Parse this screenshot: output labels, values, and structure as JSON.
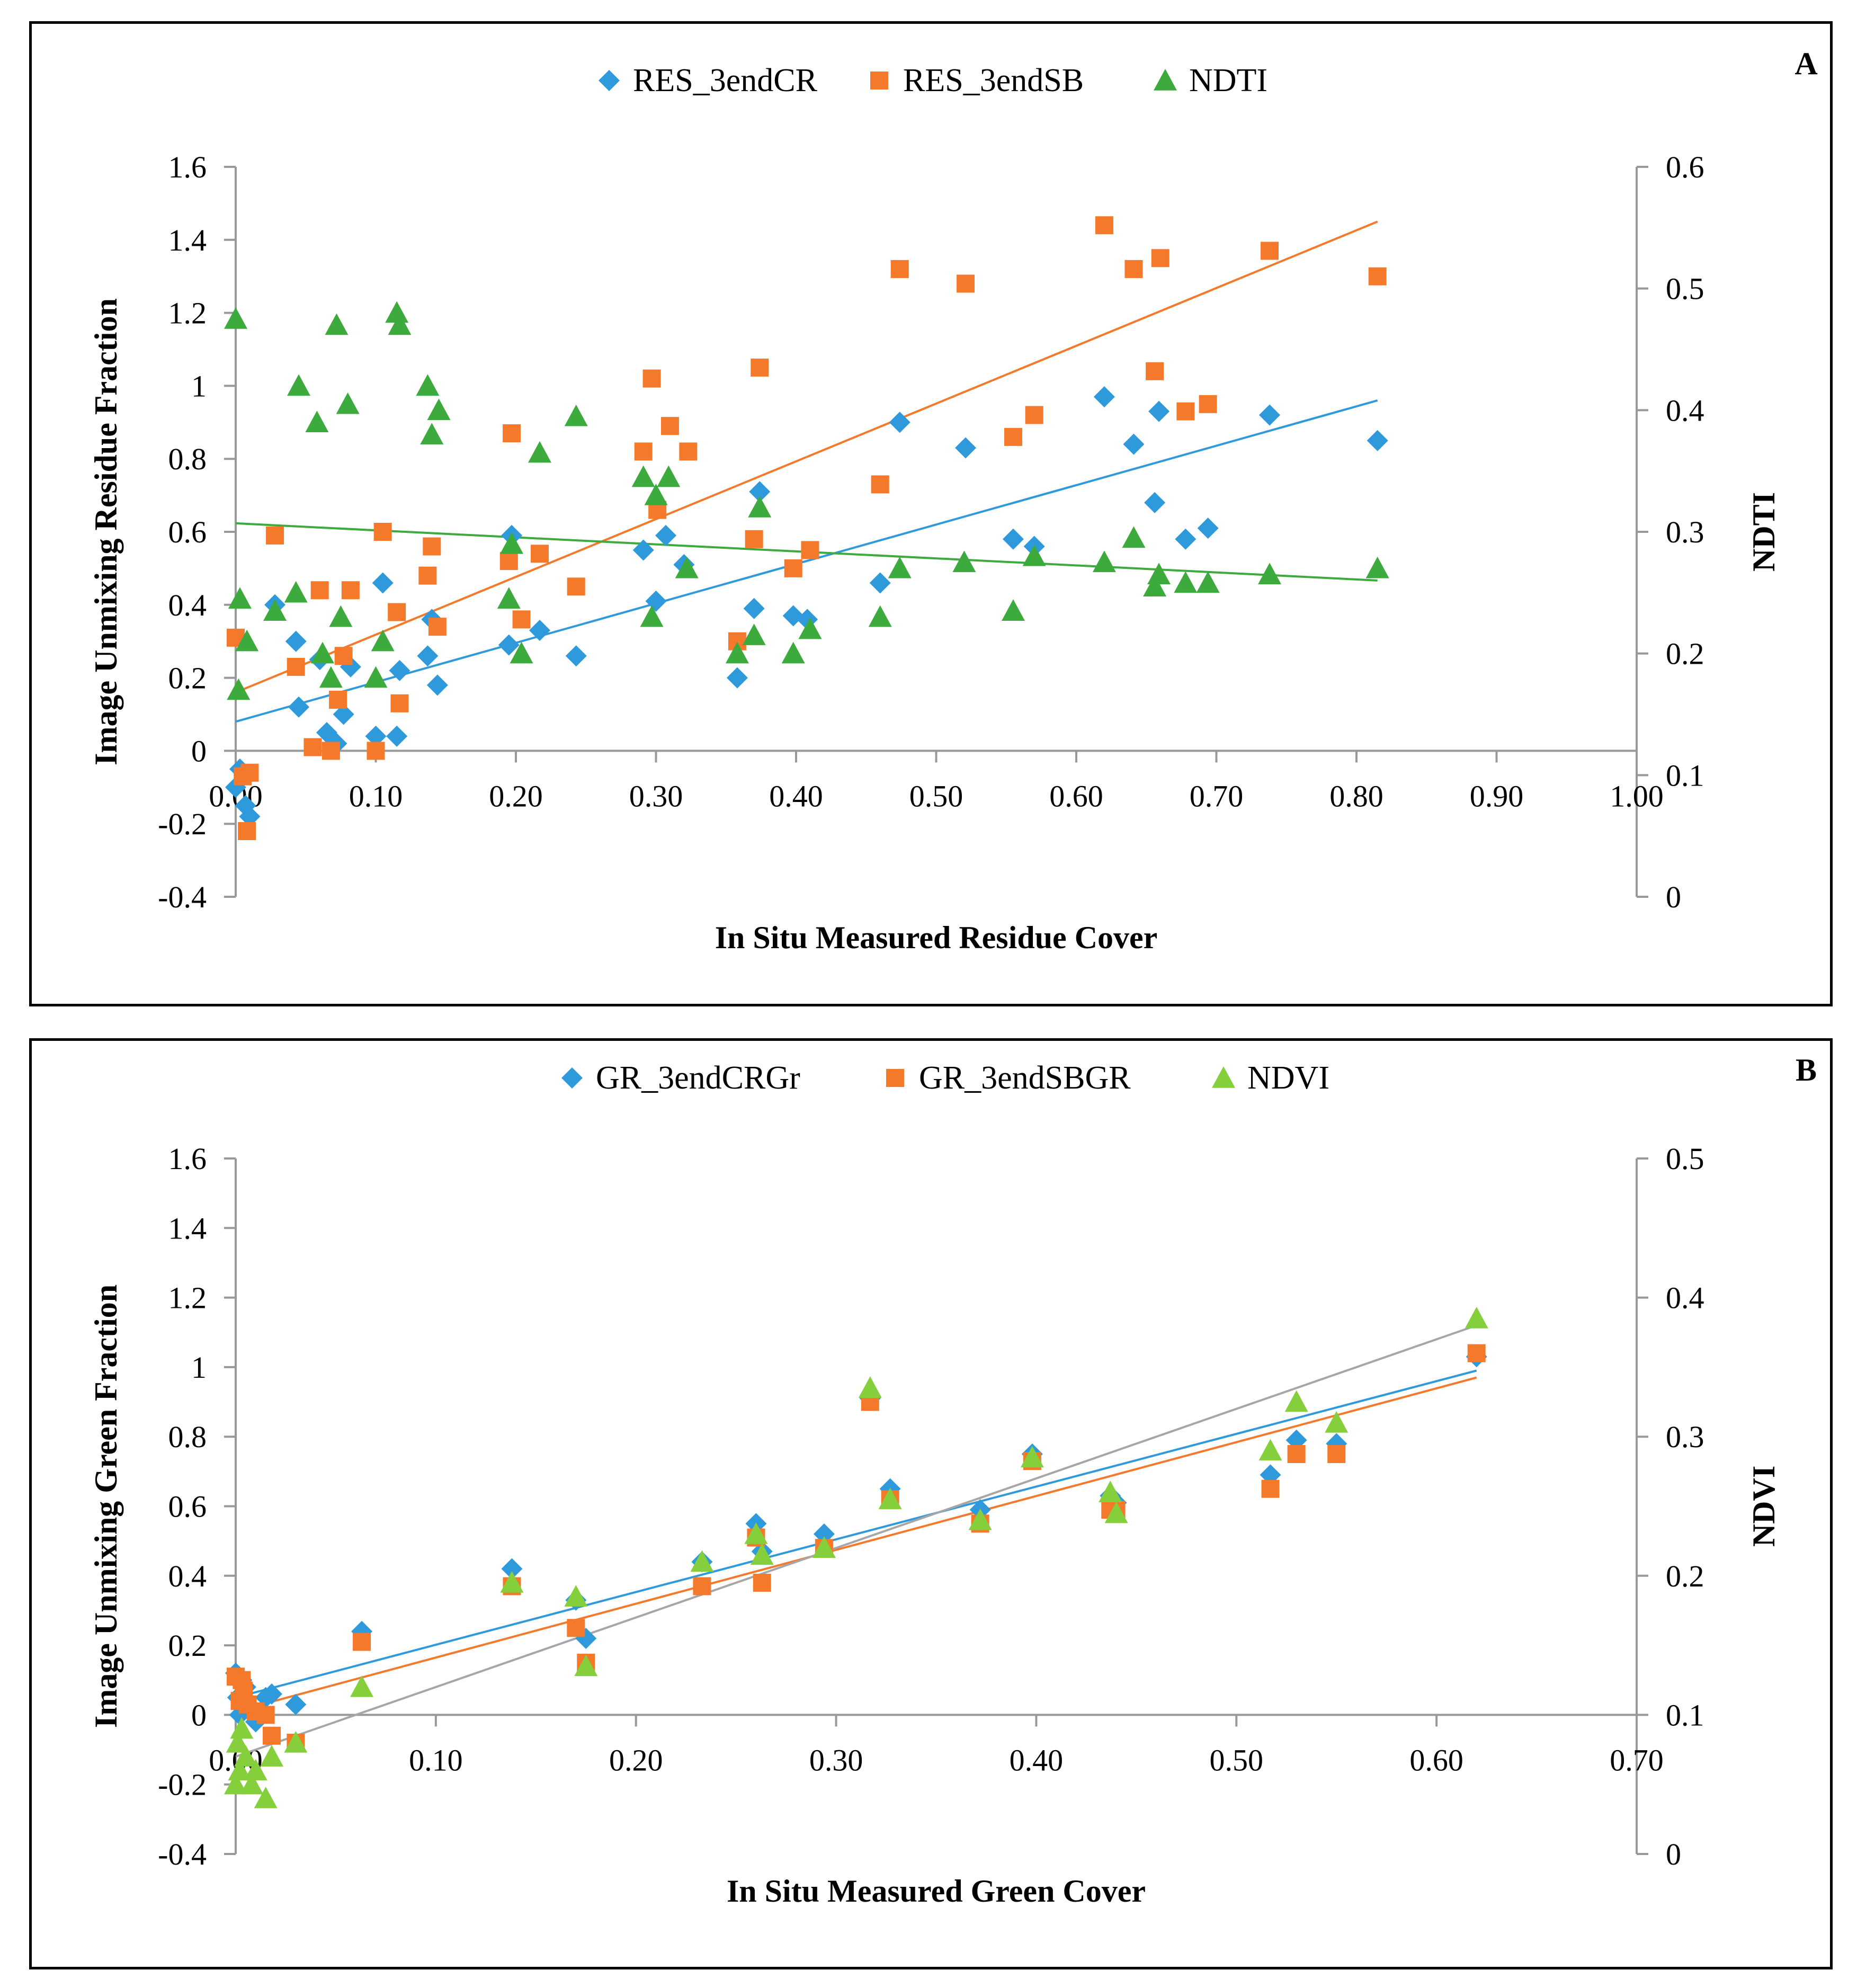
{
  "colors": {
    "blue": "#2E9ADB",
    "orange": "#F4792B",
    "green": "#3DAA3D",
    "lightgreen": "#86CF3C",
    "gray": "#A6A6A6",
    "axis": "#999999"
  },
  "chart_data": [
    {
      "type": "scatter",
      "panel_label": "A",
      "title": "",
      "xlabel": "In Situ Measured Residue Cover",
      "ylabel": "Image Unmixing Residue Fraction",
      "y2label": "NDTI",
      "xlim": [
        0,
        1.0
      ],
      "ylim": [
        -0.4,
        1.6
      ],
      "y2lim": [
        0,
        0.6
      ],
      "x_ticks": [
        "0.00",
        "0.10",
        "0.20",
        "0.30",
        "0.40",
        "0.50",
        "0.60",
        "0.70",
        "0.80",
        "0.90",
        "1.00"
      ],
      "y_ticks": [
        "-0.4",
        "-0.2",
        "0",
        "0.2",
        "0.4",
        "0.6",
        "0.8",
        "1",
        "1.2",
        "1.4",
        "1.6"
      ],
      "y2_ticks": [
        "0",
        "0.1",
        "0.2",
        "0.3",
        "0.4",
        "0.5",
        "0.6"
      ],
      "legend": [
        "RES_3endCR",
        "RES_3endSB",
        "NDTI"
      ],
      "series": [
        {
          "name": "RES_3endCR",
          "marker": "diamond",
          "color": "#2E9ADB",
          "axis": "left",
          "trend": [
            [
              0,
              0.08
            ],
            [
              0.815,
              0.96
            ]
          ],
          "points": [
            [
              0.0,
              -0.1
            ],
            [
              0.003,
              -0.05
            ],
            [
              0.007,
              -0.15
            ],
            [
              0.01,
              -0.18
            ],
            [
              0.028,
              0.4
            ],
            [
              0.043,
              0.3
            ],
            [
              0.045,
              0.12
            ],
            [
              0.06,
              0.25
            ],
            [
              0.065,
              0.05
            ],
            [
              0.072,
              0.02
            ],
            [
              0.077,
              0.1
            ],
            [
              0.082,
              0.23
            ],
            [
              0.1,
              0.04
            ],
            [
              0.105,
              0.46
            ],
            [
              0.115,
              0.04
            ],
            [
              0.117,
              0.22
            ],
            [
              0.137,
              0.26
            ],
            [
              0.14,
              0.36
            ],
            [
              0.144,
              0.18
            ],
            [
              0.195,
              0.29
            ],
            [
              0.197,
              0.59
            ],
            [
              0.217,
              0.33
            ],
            [
              0.243,
              0.26
            ],
            [
              0.291,
              0.55
            ],
            [
              0.3,
              0.41
            ],
            [
              0.307,
              0.59
            ],
            [
              0.32,
              0.51
            ],
            [
              0.358,
              0.2
            ],
            [
              0.37,
              0.39
            ],
            [
              0.374,
              0.71
            ],
            [
              0.398,
              0.37
            ],
            [
              0.408,
              0.36
            ],
            [
              0.46,
              0.46
            ],
            [
              0.474,
              0.9
            ],
            [
              0.521,
              0.83
            ],
            [
              0.555,
              0.58
            ],
            [
              0.57,
              0.56
            ],
            [
              0.62,
              0.97
            ],
            [
              0.641,
              0.84
            ],
            [
              0.656,
              0.68
            ],
            [
              0.659,
              0.93
            ],
            [
              0.678,
              0.58
            ],
            [
              0.694,
              0.61
            ],
            [
              0.738,
              0.92
            ],
            [
              0.815,
              0.85
            ]
          ]
        },
        {
          "name": "RES_3endSB",
          "marker": "square",
          "color": "#F4792B",
          "axis": "left",
          "trend": [
            [
              0,
              0.16
            ],
            [
              0.815,
              1.45
            ]
          ],
          "points": [
            [
              0.0,
              0.31
            ],
            [
              0.005,
              -0.07
            ],
            [
              0.008,
              -0.22
            ],
            [
              0.01,
              -0.06
            ],
            [
              0.028,
              0.59
            ],
            [
              0.043,
              0.23
            ],
            [
              0.055,
              0.01
            ],
            [
              0.06,
              0.44
            ],
            [
              0.068,
              0.0
            ],
            [
              0.073,
              0.14
            ],
            [
              0.077,
              0.26
            ],
            [
              0.082,
              0.44
            ],
            [
              0.1,
              -0.0
            ],
            [
              0.105,
              0.6
            ],
            [
              0.115,
              0.38
            ],
            [
              0.117,
              0.13
            ],
            [
              0.137,
              0.48
            ],
            [
              0.14,
              0.56
            ],
            [
              0.144,
              0.34
            ],
            [
              0.195,
              0.52
            ],
            [
              0.197,
              0.87
            ],
            [
              0.204,
              0.36
            ],
            [
              0.217,
              0.54
            ],
            [
              0.243,
              0.45
            ],
            [
              0.291,
              0.82
            ],
            [
              0.297,
              1.02
            ],
            [
              0.301,
              0.66
            ],
            [
              0.31,
              0.89
            ],
            [
              0.323,
              0.82
            ],
            [
              0.358,
              0.3
            ],
            [
              0.37,
              0.58
            ],
            [
              0.374,
              1.05
            ],
            [
              0.398,
              0.5
            ],
            [
              0.41,
              0.55
            ],
            [
              0.46,
              0.73
            ],
            [
              0.474,
              1.32
            ],
            [
              0.521,
              1.28
            ],
            [
              0.555,
              0.86
            ],
            [
              0.57,
              0.92
            ],
            [
              0.62,
              1.44
            ],
            [
              0.641,
              1.32
            ],
            [
              0.656,
              1.04
            ],
            [
              0.66,
              1.35
            ],
            [
              0.678,
              0.93
            ],
            [
              0.694,
              0.95
            ],
            [
              0.738,
              1.37
            ],
            [
              0.815,
              1.3
            ]
          ]
        },
        {
          "name": "NDTI",
          "marker": "triangle",
          "color": "#3DAA3D",
          "axis": "right",
          "trend": [
            [
              0,
              0.307
            ],
            [
              0.815,
              0.26
            ]
          ],
          "points": [
            [
              0.0,
              0.475
            ],
            [
              0.002,
              0.17
            ],
            [
              0.003,
              0.245
            ],
            [
              0.008,
              0.21
            ],
            [
              0.028,
              0.235
            ],
            [
              0.043,
              0.25
            ],
            [
              0.045,
              0.42
            ],
            [
              0.058,
              0.39
            ],
            [
              0.062,
              0.2
            ],
            [
              0.068,
              0.18
            ],
            [
              0.072,
              0.47
            ],
            [
              0.075,
              0.23
            ],
            [
              0.08,
              0.405
            ],
            [
              0.1,
              0.18
            ],
            [
              0.105,
              0.21
            ],
            [
              0.115,
              0.48
            ],
            [
              0.117,
              0.47
            ],
            [
              0.137,
              0.42
            ],
            [
              0.14,
              0.38
            ],
            [
              0.145,
              0.4
            ],
            [
              0.195,
              0.245
            ],
            [
              0.197,
              0.29
            ],
            [
              0.204,
              0.2
            ],
            [
              0.217,
              0.365
            ],
            [
              0.243,
              0.395
            ],
            [
              0.291,
              0.345
            ],
            [
              0.297,
              0.23
            ],
            [
              0.3,
              0.33
            ],
            [
              0.309,
              0.345
            ],
            [
              0.322,
              0.27
            ],
            [
              0.358,
              0.2
            ],
            [
              0.37,
              0.215
            ],
            [
              0.374,
              0.32
            ],
            [
              0.398,
              0.2
            ],
            [
              0.41,
              0.22
            ],
            [
              0.46,
              0.23
            ],
            [
              0.474,
              0.27
            ],
            [
              0.52,
              0.275
            ],
            [
              0.555,
              0.235
            ],
            [
              0.57,
              0.28
            ],
            [
              0.62,
              0.275
            ],
            [
              0.641,
              0.295
            ],
            [
              0.656,
              0.255
            ],
            [
              0.659,
              0.265
            ],
            [
              0.678,
              0.258
            ],
            [
              0.694,
              0.258
            ],
            [
              0.738,
              0.265
            ],
            [
              0.815,
              0.27
            ]
          ]
        }
      ]
    },
    {
      "type": "scatter",
      "panel_label": "B",
      "title": "",
      "xlabel": "In Situ Measured Green Cover",
      "ylabel": "Image Unmixing Green Fraction",
      "y2label": "NDVI",
      "xlim": [
        0,
        0.7
      ],
      "ylim": [
        -0.4,
        1.6
      ],
      "y2lim": [
        0,
        0.5
      ],
      "x_ticks": [
        "0.00",
        "0.10",
        "0.20",
        "0.30",
        "0.40",
        "0.50",
        "0.60",
        "0.70"
      ],
      "y_ticks": [
        "-0.4",
        "-0.2",
        "0",
        "0.2",
        "0.4",
        "0.6",
        "0.8",
        "1",
        "1.2",
        "1.4",
        "1.6"
      ],
      "y2_ticks": [
        "0",
        "0.1",
        "0.2",
        "0.3",
        "0.4",
        "0.5"
      ],
      "legend": [
        "GR_3endCRGr",
        "GR_3endSBGR",
        "NDVI"
      ],
      "series": [
        {
          "name": "GR_3endCRGr",
          "marker": "diamond",
          "color": "#2E9ADB",
          "axis": "left",
          "trend": [
            [
              0,
              0.05
            ],
            [
              0.62,
              0.99
            ]
          ],
          "points": [
            [
              0.0,
              0.12
            ],
            [
              0.001,
              0.05
            ],
            [
              0.002,
              0.0
            ],
            [
              0.003,
              0.1
            ],
            [
              0.005,
              0.08
            ],
            [
              0.01,
              -0.02
            ],
            [
              0.015,
              0.05
            ],
            [
              0.018,
              0.06
            ],
            [
              0.03,
              0.03
            ],
            [
              0.063,
              0.24
            ],
            [
              0.138,
              0.42
            ],
            [
              0.17,
              0.33
            ],
            [
              0.175,
              0.22
            ],
            [
              0.233,
              0.44
            ],
            [
              0.26,
              0.55
            ],
            [
              0.263,
              0.47
            ],
            [
              0.294,
              0.52
            ],
            [
              0.317,
              0.91
            ],
            [
              0.327,
              0.65
            ],
            [
              0.372,
              0.59
            ],
            [
              0.398,
              0.75
            ],
            [
              0.437,
              0.63
            ],
            [
              0.44,
              0.61
            ],
            [
              0.517,
              0.69
            ],
            [
              0.53,
              0.79
            ],
            [
              0.55,
              0.78
            ],
            [
              0.62,
              1.03
            ]
          ]
        },
        {
          "name": "GR_3endSBGR",
          "marker": "square",
          "color": "#F4792B",
          "axis": "left",
          "trend": [
            [
              0,
              0.01
            ],
            [
              0.62,
              0.97
            ]
          ],
          "points": [
            [
              0.0,
              0.11
            ],
            [
              0.002,
              0.04
            ],
            [
              0.003,
              0.1
            ],
            [
              0.004,
              0.07
            ],
            [
              0.006,
              0.03
            ],
            [
              0.01,
              0.01
            ],
            [
              0.015,
              0.0
            ],
            [
              0.018,
              -0.06
            ],
            [
              0.03,
              -0.08
            ],
            [
              0.063,
              0.21
            ],
            [
              0.138,
              0.37
            ],
            [
              0.17,
              0.25
            ],
            [
              0.175,
              0.15
            ],
            [
              0.233,
              0.37
            ],
            [
              0.26,
              0.51
            ],
            [
              0.263,
              0.38
            ],
            [
              0.294,
              0.48
            ],
            [
              0.317,
              0.9
            ],
            [
              0.327,
              0.62
            ],
            [
              0.372,
              0.55
            ],
            [
              0.398,
              0.73
            ],
            [
              0.437,
              0.59
            ],
            [
              0.44,
              0.59
            ],
            [
              0.517,
              0.65
            ],
            [
              0.53,
              0.75
            ],
            [
              0.55,
              0.75
            ],
            [
              0.62,
              1.04
            ]
          ]
        },
        {
          "name": "NDVI",
          "marker": "triangle",
          "color": "#86CF3C",
          "axis": "right",
          "trend": [
            [
              0,
              0.07
            ],
            [
              0.62,
              0.38
            ]
          ],
          "gray_trend": true,
          "points": [
            [
              0.0,
              0.05
            ],
            [
              0.001,
              0.08
            ],
            [
              0.002,
              0.06
            ],
            [
              0.003,
              0.09
            ],
            [
              0.005,
              0.07
            ],
            [
              0.008,
              0.05
            ],
            [
              0.01,
              0.06
            ],
            [
              0.015,
              0.04
            ],
            [
              0.018,
              0.07
            ],
            [
              0.03,
              0.08
            ],
            [
              0.063,
              0.12
            ],
            [
              0.138,
              0.195
            ],
            [
              0.17,
              0.185
            ],
            [
              0.175,
              0.135
            ],
            [
              0.233,
              0.21
            ],
            [
              0.26,
              0.23
            ],
            [
              0.263,
              0.215
            ],
            [
              0.294,
              0.22
            ],
            [
              0.317,
              0.335
            ],
            [
              0.327,
              0.255
            ],
            [
              0.372,
              0.24
            ],
            [
              0.398,
              0.285
            ],
            [
              0.437,
              0.26
            ],
            [
              0.44,
              0.245
            ],
            [
              0.517,
              0.29
            ],
            [
              0.53,
              0.325
            ],
            [
              0.55,
              0.31
            ],
            [
              0.62,
              0.385
            ]
          ]
        }
      ]
    }
  ]
}
